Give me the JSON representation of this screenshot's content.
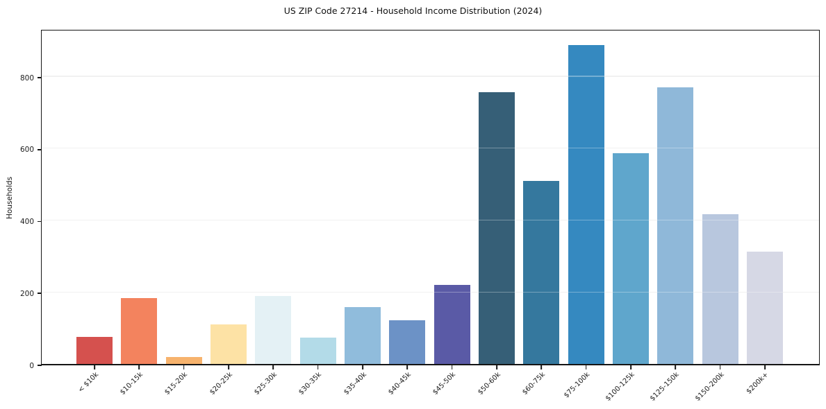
{
  "header": {
    "title": "US ZIP Code 27214 - Household Income Distribution (2024)"
  },
  "chart_data": {
    "type": "bar",
    "title": "US ZIP Code 27214 - Household Income Distribution (2024)",
    "xlabel": "",
    "ylabel": "Households",
    "ylim": [
      0,
      933
    ],
    "yticks": [
      0,
      200,
      400,
      600,
      800
    ],
    "grid": "horizontal-only, light gray, drawn over bars",
    "legend_position": "none",
    "x_tick_rotation": 45,
    "categories": [
      "< $10k",
      "$10-15k",
      "$15-20k",
      "$20-25k",
      "$25-30k",
      "$30-35k",
      "$35-40k",
      "$40-45k",
      "$45-50k",
      "$50-60k",
      "$60-75k",
      "$75-100k",
      "$100-125k",
      "$125-150k",
      "$150-200k",
      "$200k+"
    ],
    "values": [
      76,
      184,
      20,
      109,
      189,
      73,
      158,
      122,
      220,
      755,
      508,
      886,
      586,
      769,
      416,
      313
    ],
    "bar_colors": [
      "#d5514e",
      "#f3835e",
      "#f7b36d",
      "#fde2a5",
      "#e4f1f5",
      "#b3dbe8",
      "#90bcdc",
      "#6c92c6",
      "#5a5aa6",
      "#365f77",
      "#35789e",
      "#3589c0",
      "#5fa6cc",
      "#8fb8d9",
      "#b8c7de",
      "#d6d8e5"
    ]
  }
}
